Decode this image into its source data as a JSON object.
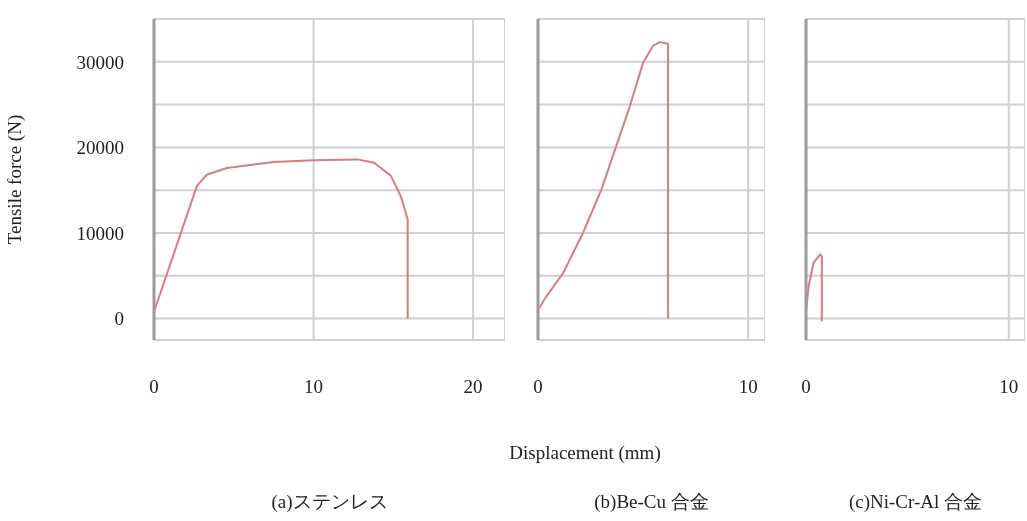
{
  "chart_data": [
    {
      "type": "line",
      "title": "(a)ステンレス",
      "ylabel": "Tensile force (N)",
      "x": [
        0,
        2.69,
        3.3,
        4.57,
        7.5,
        10.0,
        12.75,
        13.8,
        14.84,
        15.47,
        15.9,
        15.9
      ],
      "values": [
        800,
        15500,
        16800,
        17600,
        18300,
        18500,
        18600,
        18200,
        16700,
        14300,
        11600,
        0
      ],
      "color": "#d77c82",
      "xlim": [
        0,
        22
      ],
      "xticks": [
        0,
        10,
        20
      ],
      "ylim": [
        -2500,
        35000
      ],
      "yticks": [
        0,
        {
          "value": 5000,
          "label": null
        },
        10000,
        {
          "value": 15000,
          "label": null
        },
        20000,
        {
          "value": 25000,
          "label": null
        },
        30000,
        {
          "value": 35000,
          "label": null
        }
      ],
      "grid": true
    },
    {
      "type": "line",
      "title": "(b)Be-Cu 合金",
      "xlabel": "Displacement (mm)",
      "x": [
        0,
        0.4,
        1.19,
        2.14,
        3.02,
        3.73,
        4.37,
        5.0,
        5.48,
        5.8,
        6.19,
        6.19
      ],
      "values": [
        1000,
        2600,
        5300,
        10000,
        15100,
        20200,
        24800,
        29900,
        31900,
        32300,
        32100,
        0
      ],
      "color": "#d77c82",
      "xlim": [
        0,
        10.8
      ],
      "xticks": [
        0,
        10
      ],
      "ylim": [
        -2500,
        35000
      ],
      "yticks": [
        0,
        {
          "value": 5000,
          "label": null
        },
        10000,
        {
          "value": 15000,
          "label": null
        },
        20000,
        {
          "value": 25000,
          "label": null
        },
        30000,
        {
          "value": 35000,
          "label": null
        }
      ],
      "grid": true,
      "tick_labels": "x"
    },
    {
      "type": "line",
      "title": "(c)Ni-Cr-Al 合金",
      "x": [
        0,
        0.13,
        0.37,
        0.7,
        0.78,
        0.78
      ],
      "values": [
        800,
        3800,
        6500,
        7500,
        7300,
        -300
      ],
      "color": "#d77c82",
      "xlim": [
        0,
        10.8
      ],
      "xticks": [
        0,
        10
      ],
      "ylim": [
        -2500,
        35000
      ],
      "yticks": [
        0,
        {
          "value": 5000,
          "label": null
        },
        10000,
        {
          "value": 15000,
          "label": null
        },
        20000,
        {
          "value": 25000,
          "label": null
        },
        30000,
        {
          "value": 35000,
          "label": null
        }
      ],
      "grid": true,
      "tick_labels": "x"
    }
  ]
}
